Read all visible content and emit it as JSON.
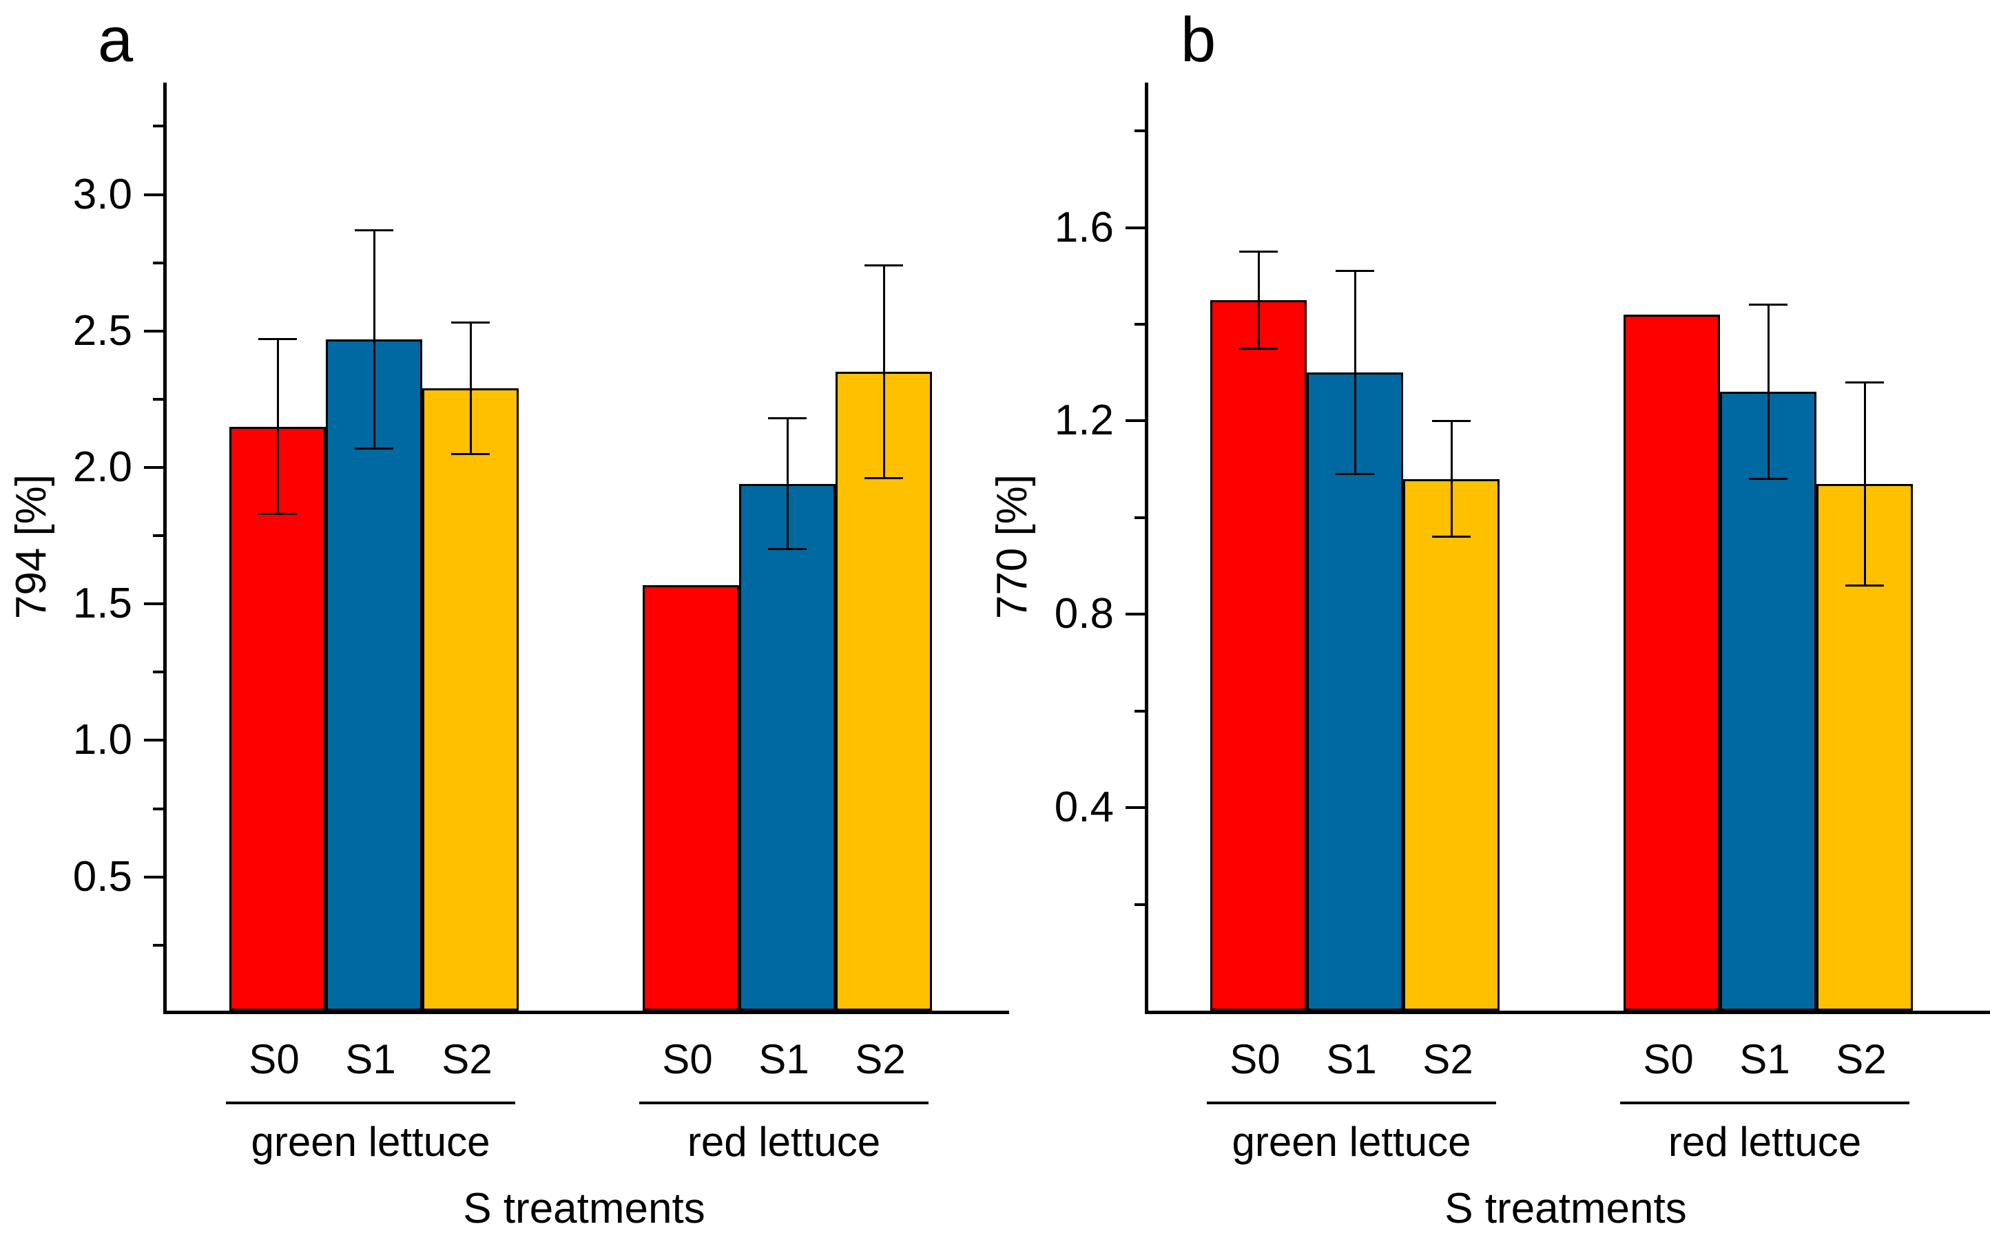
{
  "figure": {
    "background": "#FFFFFF",
    "panels": [
      {
        "panel_letter": "a"
      },
      {
        "panel_letter": "b"
      }
    ]
  },
  "chart_data": [
    {
      "type": "bar",
      "panel": "a",
      "title": "",
      "ylabel": "794 [%]",
      "xlabel": "S treatments",
      "series_labels": [
        "S0",
        "S1",
        "S2"
      ],
      "series_colors": [
        "#FF0000",
        "#0069A1",
        "#FFC000"
      ],
      "groups": [
        {
          "label": "green lettuce",
          "values": [
            2.15,
            2.47,
            2.29
          ],
          "errors": [
            0.32,
            0.4,
            0.24
          ]
        },
        {
          "label": "red lettuce",
          "values": [
            1.57,
            1.94,
            2.35
          ],
          "errors": [
            null,
            0.24,
            0.39
          ]
        }
      ],
      "ylim": [
        0.01,
        3.41
      ],
      "yticks": [
        {
          "v": 3.0,
          "label": "3.0"
        },
        {
          "v": 2.5,
          "label": "2.5"
        },
        {
          "v": 2.0,
          "label": "2.0"
        },
        {
          "v": 1.5,
          "label": "1.5"
        },
        {
          "v": 1.0,
          "label": "1.0"
        },
        {
          "v": 0.5,
          "label": "0.5"
        }
      ],
      "yticks_minor": [
        3.25,
        2.75,
        2.25,
        1.75,
        1.25,
        0.75,
        0.25
      ],
      "grid": false,
      "legend": "none",
      "error_bar_style": "caps, black, symmetric"
    },
    {
      "type": "bar",
      "panel": "b",
      "title": "",
      "ylabel": "770 [%]",
      "xlabel": "S treatments",
      "series_labels": [
        "S0",
        "S1",
        "S2"
      ],
      "series_colors": [
        "#FF0000",
        "#0069A1",
        "#FFC000"
      ],
      "groups": [
        {
          "label": "green lettuce",
          "values": [
            1.45,
            1.3,
            1.08
          ],
          "errors": [
            0.1,
            0.21,
            0.12
          ]
        },
        {
          "label": "red lettuce",
          "values": [
            1.42,
            1.26,
            1.07
          ],
          "errors": [
            null,
            0.18,
            0.21
          ]
        }
      ],
      "ylim": [
        -0.02,
        1.9
      ],
      "yticks": [
        {
          "v": 1.6,
          "label": "1.6"
        },
        {
          "v": 1.2,
          "label": "1.2"
        },
        {
          "v": 0.8,
          "label": "0.8"
        },
        {
          "v": 0.4,
          "label": "0.4"
        }
      ],
      "yticks_minor": [
        1.8,
        1.4,
        1.0,
        0.6,
        0.2
      ],
      "grid": false,
      "legend": "none",
      "error_bar_style": "caps, black, symmetric"
    }
  ]
}
